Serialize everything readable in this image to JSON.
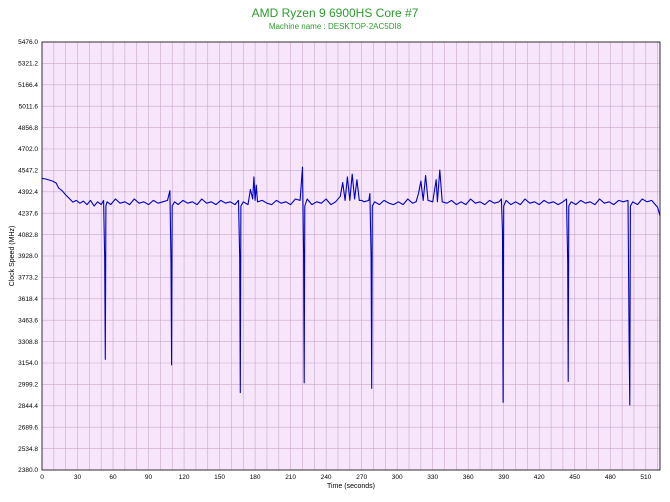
{
  "chart_data": {
    "type": "line",
    "title": "AMD Ryzen 9 6900HS Core #7",
    "subtitle": "Machine name : DESKTOP-2AC5DI8",
    "xlabel": "Time (seconds)",
    "ylabel": "Clock Speed (MHz)",
    "xlim": [
      0,
      522
    ],
    "ylim": [
      2380.0,
      5476.0
    ],
    "x_ticks": [
      "0",
      "30",
      "60",
      "90",
      "120",
      "150",
      "180",
      "210",
      "240",
      "270",
      "300",
      "330",
      "360",
      "390",
      "420",
      "450",
      "480",
      "510"
    ],
    "y_ticks": [
      "2380.0",
      "2534.8",
      "2689.6",
      "2844.4",
      "2999.2",
      "3154.0",
      "3308.8",
      "3463.6",
      "3618.4",
      "3773.2",
      "3928.0",
      "4082.8",
      "4237.6",
      "4392.4",
      "4547.2",
      "4702.0",
      "4856.8",
      "5011.6",
      "5166.4",
      "5321.2",
      "5476.0"
    ],
    "grid": true,
    "colors": {
      "line": "#0000c8",
      "plot_bg": "#f7e6fb",
      "grid": "#c9a6c9",
      "title": "#2e9a2e"
    },
    "series": [
      {
        "values": [
          [
            0,
            4490
          ],
          [
            3,
            4485
          ],
          [
            6,
            4478
          ],
          [
            9,
            4470
          ],
          [
            12,
            4455
          ],
          [
            14,
            4420
          ],
          [
            17,
            4400
          ],
          [
            20,
            4370
          ],
          [
            23,
            4345
          ],
          [
            26,
            4318
          ],
          [
            29,
            4330
          ],
          [
            32,
            4310
          ],
          [
            35,
            4325
          ],
          [
            38,
            4300
          ],
          [
            41,
            4330
          ],
          [
            44,
            4290
          ],
          [
            47,
            4320
          ],
          [
            50,
            4300
          ],
          [
            52,
            4330
          ],
          [
            53,
            3900
          ],
          [
            53.5,
            3180
          ],
          [
            54,
            4290
          ],
          [
            55,
            4320
          ],
          [
            58,
            4300
          ],
          [
            62,
            4340
          ],
          [
            66,
            4310
          ],
          [
            70,
            4320
          ],
          [
            74,
            4300
          ],
          [
            78,
            4340
          ],
          [
            82,
            4310
          ],
          [
            86,
            4320
          ],
          [
            90,
            4300
          ],
          [
            94,
            4330
          ],
          [
            98,
            4310
          ],
          [
            102,
            4320
          ],
          [
            106,
            4330
          ],
          [
            108,
            4400
          ],
          [
            109,
            3880
          ],
          [
            109.5,
            3140
          ],
          [
            110,
            4290
          ],
          [
            112,
            4320
          ],
          [
            115,
            4300
          ],
          [
            119,
            4330
          ],
          [
            123,
            4310
          ],
          [
            127,
            4320
          ],
          [
            131,
            4300
          ],
          [
            135,
            4340
          ],
          [
            139,
            4310
          ],
          [
            143,
            4320
          ],
          [
            147,
            4300
          ],
          [
            151,
            4330
          ],
          [
            155,
            4310
          ],
          [
            159,
            4320
          ],
          [
            163,
            4300
          ],
          [
            166,
            4330
          ],
          [
            167,
            3920
          ],
          [
            167.5,
            2940
          ],
          [
            168,
            4290
          ],
          [
            170,
            4320
          ],
          [
            174,
            4300
          ],
          [
            176,
            4410
          ],
          [
            178,
            4340
          ],
          [
            179,
            4500
          ],
          [
            180,
            4330
          ],
          [
            181,
            4440
          ],
          [
            182,
            4320
          ],
          [
            186,
            4330
          ],
          [
            190,
            4310
          ],
          [
            194,
            4300
          ],
          [
            198,
            4330
          ],
          [
            202,
            4310
          ],
          [
            206,
            4320
          ],
          [
            210,
            4300
          ],
          [
            214,
            4340
          ],
          [
            218,
            4330
          ],
          [
            220,
            4570
          ],
          [
            221,
            3950
          ],
          [
            221.5,
            3010
          ],
          [
            222,
            4290
          ],
          [
            224,
            4340
          ],
          [
            228,
            4300
          ],
          [
            232,
            4320
          ],
          [
            236,
            4310
          ],
          [
            240,
            4340
          ],
          [
            244,
            4300
          ],
          [
            248,
            4320
          ],
          [
            252,
            4360
          ],
          [
            254,
            4460
          ],
          [
            256,
            4330
          ],
          [
            258,
            4500
          ],
          [
            260,
            4330
          ],
          [
            262,
            4520
          ],
          [
            264,
            4340
          ],
          [
            266,
            4480
          ],
          [
            268,
            4330
          ],
          [
            270,
            4330
          ],
          [
            272,
            4320
          ],
          [
            276,
            4330
          ],
          [
            277,
            4380
          ],
          [
            278,
            3920
          ],
          [
            278.5,
            2970
          ],
          [
            279,
            4290
          ],
          [
            281,
            4320
          ],
          [
            285,
            4300
          ],
          [
            289,
            4330
          ],
          [
            293,
            4310
          ],
          [
            297,
            4300
          ],
          [
            301,
            4320
          ],
          [
            305,
            4300
          ],
          [
            309,
            4340
          ],
          [
            313,
            4310
          ],
          [
            316,
            4320
          ],
          [
            318,
            4380
          ],
          [
            320,
            4470
          ],
          [
            322,
            4330
          ],
          [
            324,
            4510
          ],
          [
            326,
            4330
          ],
          [
            330,
            4320
          ],
          [
            333,
            4480
          ],
          [
            334,
            4320
          ],
          [
            336,
            4550
          ],
          [
            338,
            4320
          ],
          [
            342,
            4310
          ],
          [
            346,
            4330
          ],
          [
            350,
            4300
          ],
          [
            354,
            4320
          ],
          [
            358,
            4300
          ],
          [
            362,
            4340
          ],
          [
            366,
            4310
          ],
          [
            370,
            4320
          ],
          [
            374,
            4300
          ],
          [
            378,
            4330
          ],
          [
            382,
            4310
          ],
          [
            386,
            4320
          ],
          [
            388,
            4340
          ],
          [
            389,
            4100
          ],
          [
            389.5,
            2870
          ],
          [
            390,
            4290
          ],
          [
            392,
            4330
          ],
          [
            396,
            4300
          ],
          [
            400,
            4320
          ],
          [
            404,
            4300
          ],
          [
            408,
            4340
          ],
          [
            412,
            4310
          ],
          [
            416,
            4320
          ],
          [
            420,
            4300
          ],
          [
            424,
            4330
          ],
          [
            428,
            4310
          ],
          [
            432,
            4320
          ],
          [
            436,
            4300
          ],
          [
            440,
            4320
          ],
          [
            443,
            4340
          ],
          [
            444,
            3880
          ],
          [
            444.5,
            3020
          ],
          [
            445,
            4290
          ],
          [
            447,
            4320
          ],
          [
            451,
            4300
          ],
          [
            455,
            4330
          ],
          [
            459,
            4310
          ],
          [
            463,
            4320
          ],
          [
            467,
            4300
          ],
          [
            471,
            4340
          ],
          [
            475,
            4310
          ],
          [
            479,
            4320
          ],
          [
            483,
            4300
          ],
          [
            487,
            4330
          ],
          [
            491,
            4320
          ],
          [
            495,
            4330
          ],
          [
            496,
            3250
          ],
          [
            496.5,
            2850
          ],
          [
            497,
            4290
          ],
          [
            499,
            4320
          ],
          [
            503,
            4300
          ],
          [
            507,
            4340
          ],
          [
            511,
            4320
          ],
          [
            515,
            4330
          ],
          [
            518,
            4300
          ],
          [
            520,
            4280
          ],
          [
            522,
            4220
          ]
        ]
      }
    ]
  }
}
